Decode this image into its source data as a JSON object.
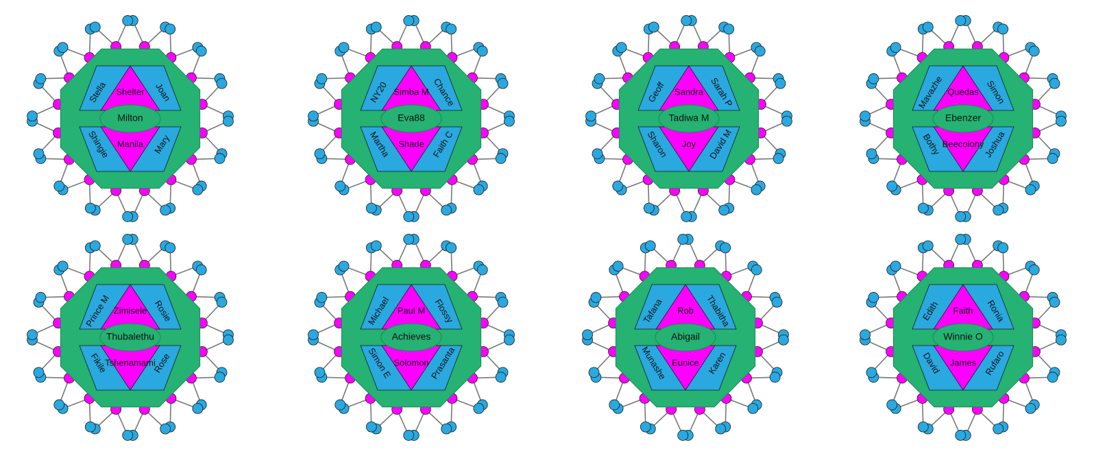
{
  "colors": {
    "octagon": "#25b272",
    "ring_outer": "#2aa8e0",
    "ring_inner": "#ff00ff",
    "triangle": "#ff00ff",
    "side_panel": "#2aa8e0",
    "center_ellipse": "#25b272",
    "stroke": "#1a1a1a",
    "spoke": "#777777"
  },
  "diagrams": [
    {
      "center": "Milton",
      "top": "Shelter",
      "bottom": "Manila",
      "top_left": "Stella",
      "top_right": "Joan",
      "bottom_left": "Shingie",
      "bottom_right": "Mary"
    },
    {
      "center": "Eva88",
      "top": "Simba M",
      "bottom": "Shade",
      "top_left": "NY20",
      "top_right": "Chance",
      "bottom_left": "Martha",
      "bottom_right": "Faith C"
    },
    {
      "center": "Tadiwa M",
      "top": "Sandra",
      "bottom": "Joy",
      "top_left": "Geoff",
      "top_right": "Sarah P",
      "bottom_left": "Sharon",
      "bottom_right": "David M"
    },
    {
      "center": "Ebenzer",
      "top": "Quedas",
      "bottom": "Beecolony",
      "top_left": "Mavazhe",
      "top_right": "Simon",
      "bottom_left": "Bothy",
      "bottom_right": "Joshua"
    },
    {
      "center": "Thubalethu",
      "top": "Zimisele",
      "bottom": "Tshenamami",
      "top_left": "Prince M",
      "top_right": "Rosie",
      "bottom_left": "Fikile",
      "bottom_right": "Rose"
    },
    {
      "center": "Achieves",
      "top": "Paul M",
      "bottom": "Solomon",
      "top_left": "Michael",
      "top_right": "Flossy",
      "bottom_left": "Simon E",
      "bottom_right": "Prasanta"
    },
    {
      "center": "Abigail",
      "top": "Rob",
      "bottom": "Eunice",
      "top_left": "Tafana",
      "top_right": "Thabitha",
      "bottom_left": "Munashe",
      "bottom_right": "Karen"
    },
    {
      "center": "Winnie O",
      "top": "Faith",
      "bottom": "James",
      "top_left": "Edith",
      "top_right": "Ronia",
      "bottom_left": "David",
      "bottom_right": "Rufaro"
    }
  ]
}
